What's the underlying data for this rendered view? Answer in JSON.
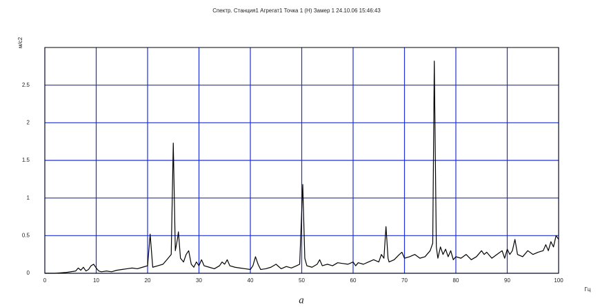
{
  "chart_data": {
    "type": "line",
    "title": "Спектр. Станция1 Агрегат1 Точка  1 (Н) Замер  1 24.10.06 15:46:43",
    "y_label": "м/с2",
    "x_label": "Гц",
    "caption": "a",
    "x": [
      0,
      2,
      4,
      6,
      6.5,
      7,
      7.5,
      8,
      8.5,
      9,
      9.5,
      10,
      10.5,
      11,
      12,
      13,
      14,
      15,
      16,
      17,
      18,
      19,
      20,
      20.5,
      21,
      22,
      23,
      24,
      24.6,
      25,
      25.4,
      25.8,
      26,
      26.4,
      27,
      27.5,
      28,
      28.5,
      29,
      29.5,
      30,
      30.5,
      31,
      32,
      33,
      34,
      34.5,
      35,
      35.5,
      36,
      37,
      38,
      39,
      40,
      40.5,
      41,
      41.5,
      42,
      43,
      44,
      45,
      46,
      47,
      48,
      49,
      49.6,
      50.2,
      50.6,
      51,
      52,
      53,
      53.5,
      54,
      55,
      56,
      57,
      58,
      59,
      60,
      60.5,
      61,
      62,
      63,
      64,
      65,
      65.5,
      66,
      66.4,
      66.8,
      67,
      68,
      69,
      69.5,
      70,
      71,
      72,
      73,
      74,
      75,
      75.5,
      75.8,
      76.2,
      76.5,
      77,
      77.5,
      78,
      78.5,
      79,
      79.5,
      80,
      81,
      82,
      83,
      84,
      85,
      85.5,
      86,
      87,
      88,
      89,
      89.5,
      90,
      90.5,
      91,
      91.5,
      92,
      93,
      94,
      95,
      96,
      97,
      97.5,
      98,
      98.5,
      99,
      99.5,
      100
    ],
    "series": [
      {
        "color": "#000000",
        "values": [
          0,
          0,
          0.01,
          0.03,
          0.07,
          0.04,
          0.08,
          0.03,
          0.05,
          0.1,
          0.12,
          0.07,
          0.03,
          0.02,
          0.03,
          0.02,
          0.04,
          0.05,
          0.06,
          0.07,
          0.06,
          0.08,
          0.1,
          0.52,
          0.08,
          0.1,
          0.12,
          0.2,
          0.25,
          1.73,
          0.3,
          0.45,
          0.55,
          0.2,
          0.15,
          0.25,
          0.3,
          0.12,
          0.08,
          0.15,
          0.1,
          0.18,
          0.1,
          0.08,
          0.06,
          0.1,
          0.15,
          0.12,
          0.18,
          0.1,
          0.08,
          0.07,
          0.06,
          0.05,
          0.1,
          0.22,
          0.12,
          0.05,
          0.06,
          0.08,
          0.12,
          0.06,
          0.09,
          0.07,
          0.1,
          0.12,
          1.18,
          0.2,
          0.1,
          0.08,
          0.12,
          0.18,
          0.1,
          0.12,
          0.1,
          0.14,
          0.13,
          0.12,
          0.15,
          0.1,
          0.14,
          0.12,
          0.15,
          0.18,
          0.15,
          0.25,
          0.2,
          0.62,
          0.2,
          0.15,
          0.18,
          0.25,
          0.28,
          0.2,
          0.22,
          0.25,
          0.2,
          0.22,
          0.3,
          0.4,
          2.82,
          0.35,
          0.2,
          0.35,
          0.25,
          0.32,
          0.22,
          0.3,
          0.18,
          0.22,
          0.2,
          0.25,
          0.18,
          0.22,
          0.3,
          0.25,
          0.28,
          0.2,
          0.25,
          0.3,
          0.2,
          0.32,
          0.25,
          0.3,
          0.45,
          0.25,
          0.22,
          0.3,
          0.25,
          0.28,
          0.3,
          0.38,
          0.3,
          0.42,
          0.35,
          0.5,
          0.45
        ]
      }
    ],
    "xlim": [
      0,
      100
    ],
    "xticks": [
      0,
      10,
      20,
      30,
      40,
      50,
      60,
      70,
      80,
      90,
      100
    ],
    "ylim": [
      0,
      3
    ],
    "yticks": [
      0,
      0.5,
      1,
      1.5,
      2,
      2.5
    ],
    "grid": true,
    "grid_color": "#1f2fd6"
  }
}
